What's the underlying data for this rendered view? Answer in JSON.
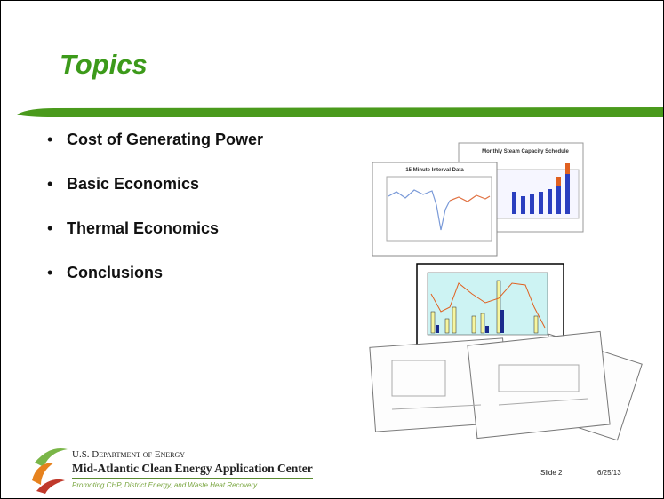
{
  "slide": {
    "title": "Topics",
    "bullets": [
      "Cost of Generating Power",
      "Basic Economics",
      "Thermal Economics",
      "Conclusions"
    ],
    "images": {
      "interval_chart_title": "15 Minute Interval Data",
      "steam_chart_title": "Monthly Steam Capacity Schedule"
    },
    "footer": {
      "org_line": "U.S. Department of Energy",
      "center": "Mid-Atlantic Clean Energy Application Center",
      "tagline": "Promoting CHP, District Energy, and Waste Heat Recovery",
      "slide_number": "Slide 2",
      "date": "6/25/13"
    }
  }
}
